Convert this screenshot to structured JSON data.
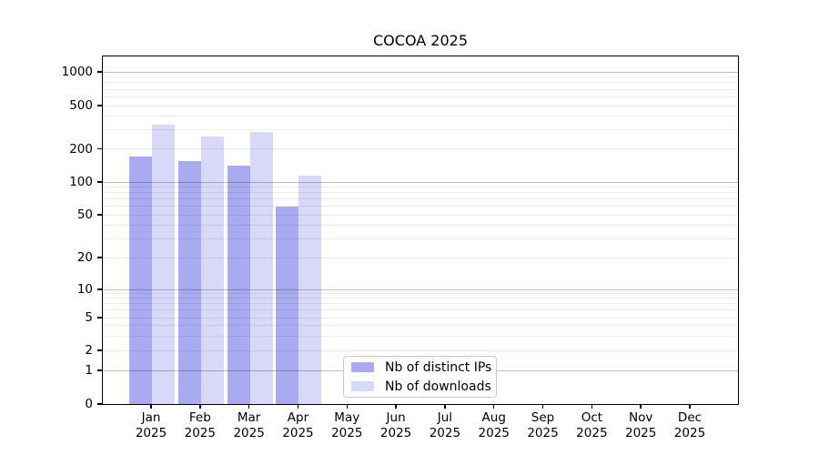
{
  "chart_data": {
    "type": "bar",
    "title": "COCOA 2025",
    "categories": [
      "Jan",
      "Feb",
      "Mar",
      "Apr",
      "May",
      "Jun",
      "Jul",
      "Aug",
      "Sep",
      "Oct",
      "Nov",
      "Dec"
    ],
    "category_year": "2025",
    "series": [
      {
        "name": "Nb of distinct IPs",
        "color": "#aaaaf0",
        "values": [
          170,
          155,
          142,
          60,
          null,
          null,
          null,
          null,
          null,
          null,
          null,
          null
        ]
      },
      {
        "name": "Nb of downloads",
        "color": "#d8d8f8",
        "values": [
          335,
          260,
          285,
          115,
          null,
          null,
          null,
          null,
          null,
          null,
          null,
          null
        ]
      }
    ],
    "yscale": "symlog",
    "yticks": [
      0,
      1,
      2,
      5,
      10,
      20,
      50,
      100,
      200,
      500,
      1000
    ],
    "ylim": [
      0,
      1400
    ],
    "xlabel": "",
    "ylabel": "",
    "grid": "horizontal major and minor gridlines",
    "legend_position": "inside plot, lower middle"
  }
}
